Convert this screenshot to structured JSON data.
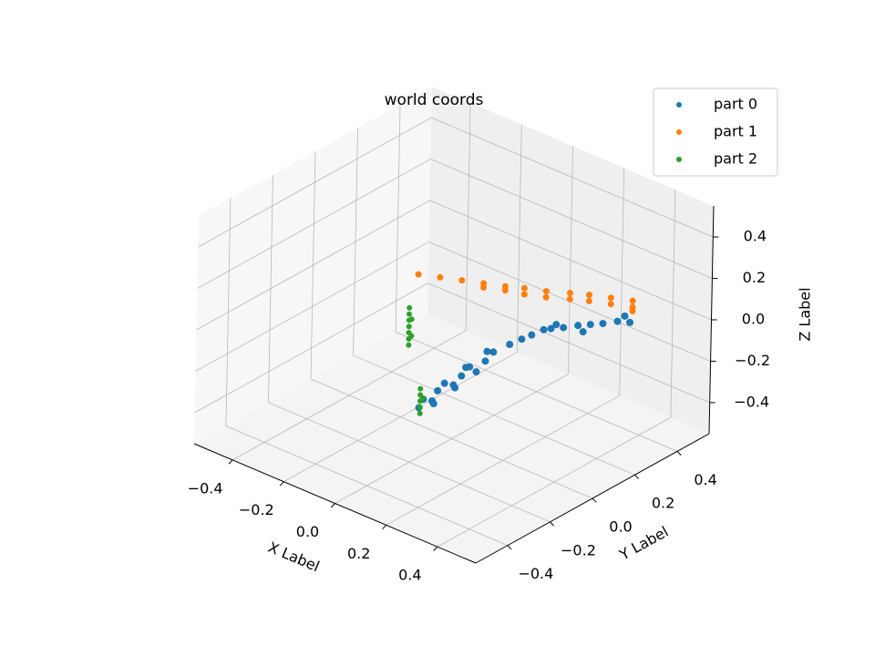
{
  "chart_data": {
    "type": "scatter3d",
    "title": "world coords",
    "xlabel": "X Label",
    "ylabel": "Y Label",
    "zlabel": "Z Label",
    "xlim": [
      -0.55,
      0.55
    ],
    "ylim": [
      -0.55,
      0.55
    ],
    "zlim": [
      -0.55,
      0.55
    ],
    "xticks": [
      {
        "value": -0.4,
        "label": "−0.4"
      },
      {
        "value": -0.2,
        "label": "−0.2"
      },
      {
        "value": 0,
        "label": "0.0"
      },
      0.2,
      0.4
    ],
    "yticks": [
      {
        "value": -0.4,
        "label": "−0.4"
      },
      {
        "value": -0.2,
        "label": "−0.2"
      },
      {
        "value": 0,
        "label": "0.0"
      },
      0.2,
      0.4
    ],
    "zticks": [
      {
        "value": -0.4,
        "label": "−0.4"
      },
      {
        "value": -0.2,
        "label": "−0.2"
      },
      {
        "value": 0,
        "label": "0.0"
      },
      0.2,
      0.4
    ],
    "grid": true,
    "legend": "upper right",
    "series": [
      {
        "name": "part 0",
        "color": "#1f77b4",
        "x": [
          0.09,
          0.1,
          0.08,
          0.1,
          0.09,
          0.08,
          0.1,
          0.09,
          0.09,
          0.09,
          0.09,
          0.09,
          0.09,
          0.09,
          0.09,
          0.12,
          0.15,
          0.18,
          0.21,
          0.23,
          0.27,
          0.31,
          0.35,
          0.39,
          0.43,
          0.47,
          0.45,
          0.33,
          0.25
        ],
        "y": [
          -0.27,
          -0.22,
          -0.17,
          -0.12,
          -0.07,
          -0.02,
          0.03,
          0.08,
          -0.25,
          -0.15,
          -0.05,
          0.05,
          -0.2,
          -0.1,
          0.0,
          0.12,
          0.14,
          0.15,
          0.17,
          0.18,
          0.19,
          0.21,
          0.22,
          0.23,
          0.25,
          0.26,
          0.26,
          0.21,
          0.18
        ],
        "z": [
          -0.2,
          -0.19,
          -0.18,
          -0.17,
          -0.16,
          -0.15,
          -0.14,
          -0.13,
          -0.17,
          -0.15,
          -0.13,
          -0.11,
          -0.22,
          -0.2,
          -0.18,
          -0.1,
          -0.07,
          -0.04,
          -0.01,
          0.0,
          0.02,
          0.04,
          0.06,
          0.08,
          0.1,
          0.11,
          0.13,
          0.02,
          0.03
        ]
      },
      {
        "name": "part 1",
        "color": "#ff7f0e",
        "x": [
          -0.19,
          -0.13,
          -0.07,
          -0.01,
          0.05,
          0.1,
          0.16,
          0.22,
          0.27,
          0.33,
          0.39,
          -0.01,
          0.05,
          0.1,
          0.16,
          0.22,
          0.27,
          0.33,
          0.39,
          0.39
        ],
        "y": [
          0.06,
          0.09,
          0.12,
          0.15,
          0.18,
          0.21,
          0.24,
          0.28,
          0.31,
          0.34,
          0.37,
          0.15,
          0.18,
          0.21,
          0.24,
          0.28,
          0.31,
          0.34,
          0.37,
          0.37
        ],
        "z": [
          0.11,
          0.11,
          0.11,
          0.11,
          0.11,
          0.11,
          0.11,
          0.11,
          0.11,
          0.11,
          0.11,
          0.09,
          0.09,
          0.08,
          0.08,
          0.08,
          0.08,
          0.08,
          0.08,
          0.06
        ]
      },
      {
        "name": "part 2",
        "color": "#2ca02c",
        "x": [
          -0.06,
          -0.06,
          -0.06,
          -0.06,
          -0.06,
          -0.06,
          -0.06,
          -0.05,
          -0.05,
          0.05,
          0.05,
          0.05,
          0.05,
          0.05,
          0.06
        ],
        "y": [
          -0.14,
          -0.14,
          -0.14,
          -0.14,
          -0.14,
          -0.14,
          -0.14,
          -0.14,
          -0.14,
          -0.215,
          -0.215,
          -0.215,
          -0.215,
          -0.215,
          -0.215
        ],
        "z": [
          -0.05,
          -0.02,
          0.01,
          0.04,
          0.07,
          0.1,
          0.13,
          0.0,
          0.08,
          -0.28,
          -0.25,
          -0.22,
          -0.19,
          -0.16,
          -0.2
        ]
      }
    ]
  }
}
